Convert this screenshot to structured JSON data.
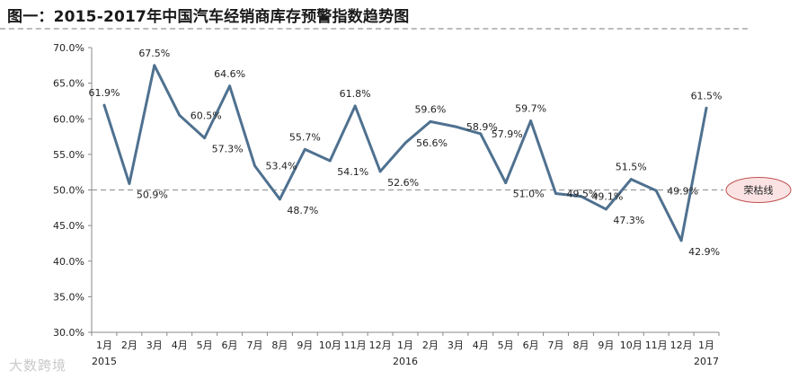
{
  "title": "图一：2015-2017年中国汽车经销商库存预警指数趋势图",
  "watermark": "大数跨境",
  "colors": {
    "line": "#4f7190",
    "reference": "#8c8c8c",
    "badge_fill": "#fbe3e3",
    "badge_stroke": "#c05050",
    "axis": "#888888"
  },
  "chart_data": {
    "type": "line",
    "title": "图一：2015-2017年中国汽车经销商库存预警指数趋势图",
    "xlabel": "",
    "ylabel": "",
    "ylim": [
      30,
      70
    ],
    "y_ticks": [
      "30.0%",
      "35.0%",
      "40.0%",
      "45.0%",
      "50.0%",
      "55.0%",
      "60.0%",
      "65.0%",
      "70.0%"
    ],
    "categories": [
      "1月",
      "2月",
      "3月",
      "4月",
      "5月",
      "6月",
      "7月",
      "8月",
      "9月",
      "10月",
      "11月",
      "12月",
      "1月",
      "2月",
      "3月",
      "4月",
      "5月",
      "6月",
      "7月",
      "8月",
      "9月",
      "10月",
      "11月",
      "12月",
      "1月"
    ],
    "year_labels": [
      {
        "label": "2015",
        "index": 0
      },
      {
        "label": "2016",
        "index": 12
      },
      {
        "label": "2017",
        "index": 24
      }
    ],
    "values": [
      61.9,
      50.9,
      67.5,
      60.5,
      57.3,
      64.6,
      53.4,
      48.7,
      55.7,
      54.1,
      61.8,
      52.6,
      56.6,
      59.6,
      58.9,
      57.9,
      51.0,
      59.7,
      49.5,
      49.1,
      47.3,
      51.5,
      49.9,
      42.9,
      61.5
    ],
    "data_labels": [
      "61.9%",
      "50.9%",
      "67.5%",
      "60.5%",
      "57.3%",
      "64.6%",
      "53.4%",
      "48.7%",
      "55.7%",
      "54.1%",
      "61.8%",
      "52.6%",
      "56.6%",
      "59.6%",
      "58.9%",
      "57.9%",
      "51.0%",
      "59.7%",
      "49.5%",
      "49.1%",
      "47.3%",
      "51.5%",
      "49.9%",
      "42.9%",
      "61.5%"
    ],
    "reference_line": {
      "value": 50,
      "label": "荣枯线"
    },
    "grid": false,
    "legend": "none"
  }
}
